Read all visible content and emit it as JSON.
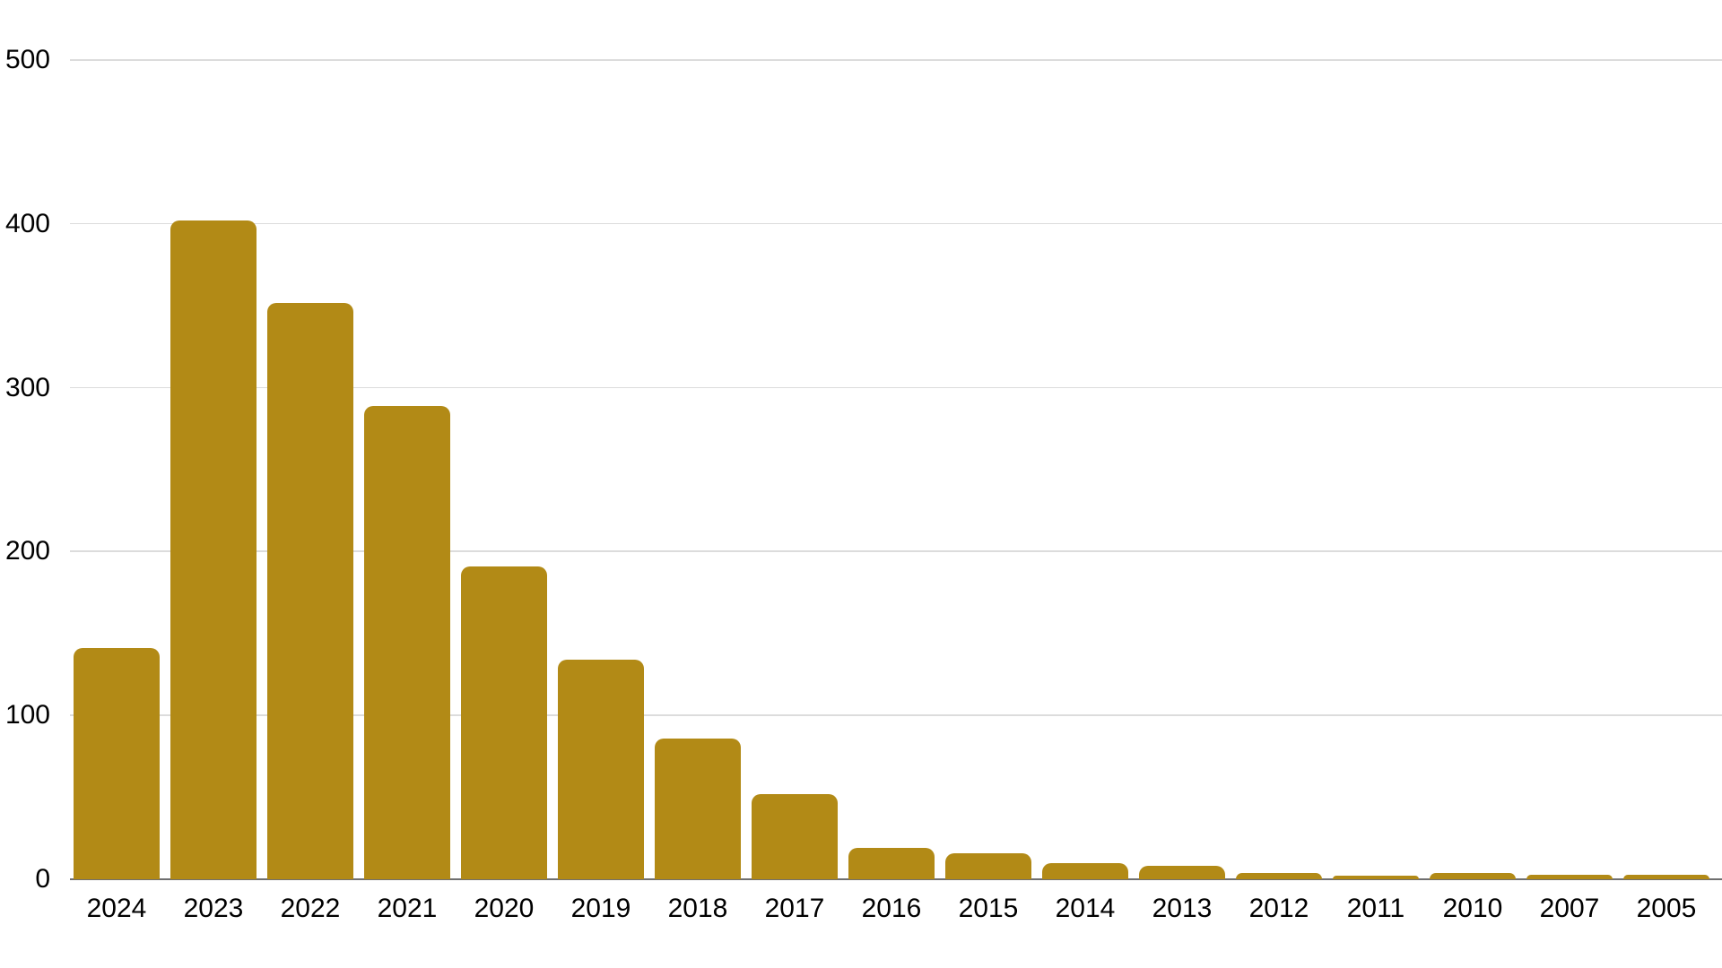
{
  "chart_data": {
    "type": "bar",
    "title": "",
    "xlabel": "",
    "ylabel": "",
    "categories": [
      "2024",
      "2023",
      "2022",
      "2021",
      "2020",
      "2019",
      "2018",
      "2017",
      "2016",
      "2015",
      "2014",
      "2013",
      "2012",
      "2011",
      "2010",
      "2007",
      "2005"
    ],
    "values": [
      141,
      402,
      352,
      289,
      191,
      134,
      86,
      52,
      19,
      16,
      10,
      8,
      4,
      2,
      4,
      3,
      3
    ],
    "ylim": [
      0,
      500
    ],
    "yticks": [
      0,
      100,
      200,
      300,
      400,
      500
    ],
    "grid": "horizontal",
    "legend": "none",
    "colors": {
      "bar": "#B28A16",
      "gridline": "#DCDCDC",
      "axis_line": "#6F6F6F",
      "label": "#000000",
      "background": "#FFFFFF"
    }
  }
}
